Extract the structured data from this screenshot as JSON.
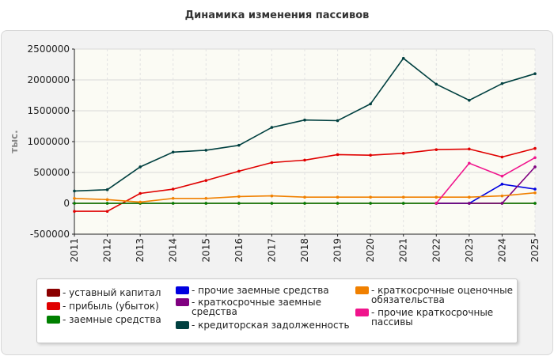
{
  "title": "Динамика изменения пассивов",
  "chart_data": {
    "type": "line",
    "title": "Динамика изменения пассивов",
    "ylabel": "тыс.",
    "xlabel": "",
    "ylim": [
      -500000,
      2500000
    ],
    "yticks": [
      -500000,
      0,
      500000,
      1000000,
      1500000,
      2000000,
      2500000
    ],
    "ytick_labels": [
      "-500000",
      "0",
      "500000",
      "1000000",
      "1500000",
      "2000000",
      "2500000"
    ],
    "x": [
      "2011",
      "2012",
      "2013",
      "2014",
      "2015",
      "2016",
      "2017",
      "2018",
      "2019",
      "2020",
      "2021",
      "2022",
      "2023",
      "2024",
      "2025"
    ],
    "grid": true,
    "legend_position": "bottom",
    "series": [
      {
        "name": "- уставный капитал",
        "color": "#8b0000",
        "values": [
          0,
          0,
          0,
          0,
          0,
          0,
          0,
          0,
          0,
          0,
          0,
          0,
          0,
          0,
          0
        ]
      },
      {
        "name": "- прибыль (убыток)",
        "color": "#e00000",
        "values": [
          -130000,
          -130000,
          160000,
          230000,
          370000,
          520000,
          660000,
          700000,
          790000,
          780000,
          810000,
          870000,
          880000,
          750000,
          890000
        ]
      },
      {
        "name": "- заемные средства",
        "color": "#008000",
        "values": [
          0,
          0,
          0,
          0,
          0,
          0,
          0,
          0,
          0,
          0,
          0,
          0,
          0,
          0,
          0
        ]
      },
      {
        "name": "- прочие заемные средства",
        "color": "#0000e0",
        "values": [
          null,
          null,
          null,
          null,
          null,
          null,
          null,
          null,
          null,
          null,
          null,
          0,
          0,
          310000,
          230000
        ]
      },
      {
        "name": "- краткосрочные заемные средства",
        "color": "#800080",
        "values": [
          null,
          null,
          null,
          null,
          null,
          null,
          null,
          null,
          null,
          null,
          null,
          0,
          0,
          0,
          590000
        ]
      },
      {
        "name": "- кредиторская задолженность",
        "color": "#004040",
        "values": [
          200000,
          220000,
          590000,
          830000,
          860000,
          940000,
          1230000,
          1350000,
          1340000,
          1610000,
          2350000,
          1930000,
          1670000,
          1940000,
          2100000
        ]
      },
      {
        "name": "- краткосрочные оценочные обязательства",
        "color": "#f08000",
        "values": [
          80000,
          60000,
          20000,
          80000,
          80000,
          110000,
          120000,
          100000,
          100000,
          100000,
          100000,
          100000,
          100000,
          120000,
          170000
        ]
      },
      {
        "name": "- прочие краткосрочные пассивы",
        "color": "#f0148c",
        "values": [
          null,
          null,
          null,
          null,
          null,
          null,
          null,
          null,
          null,
          null,
          null,
          0,
          650000,
          440000,
          740000
        ]
      }
    ]
  },
  "legend": {
    "col1": [
      "- уставный капитал",
      "- прибыль (убыток)",
      "- заемные средства"
    ],
    "col2a": "- прочие заемные средства",
    "col2b_line1": "- краткосрочные заемные",
    "col2b_line2": "средства",
    "col2c": "- кредиторская задолженность",
    "col3a_line1": "- краткосрочные оценочные",
    "col3a_line2": "обязательства",
    "col3b_line1": "- прочие краткосрочные",
    "col3b_line2": "пассивы"
  },
  "colors": {
    "c0": "#8b0000",
    "c1": "#e00000",
    "c2": "#008000",
    "c3": "#0000e0",
    "c4": "#800080",
    "c5": "#004040",
    "c6": "#f08000",
    "c7": "#f0148c"
  }
}
